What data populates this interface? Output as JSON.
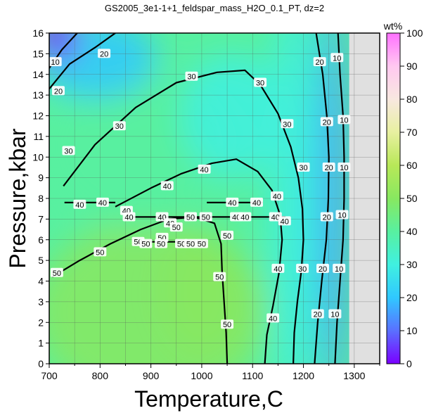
{
  "chart_data": {
    "type": "heatmap",
    "title": "GS2005_3e1-1+1_feldspar_mass_H2O_0.1_PT, dz=2",
    "xlabel": "Temperature,C",
    "ylabel": "Pressure,kbar",
    "xlim": [
      700,
      1350
    ],
    "ylim": [
      0,
      16
    ],
    "x_ticks": [
      "700",
      "800",
      "900",
      "1000",
      "1100",
      "1200",
      "1300"
    ],
    "y_ticks": [
      "0",
      "1",
      "2",
      "3",
      "4",
      "5",
      "6",
      "7",
      "8",
      "9",
      "10",
      "11",
      "12",
      "13",
      "14",
      "15",
      "16"
    ],
    "grid": true,
    "colorbar": {
      "label": "wt%",
      "range": [
        0,
        100
      ],
      "ticks": [
        "0",
        "10",
        "20",
        "30",
        "40",
        "50",
        "60",
        "70",
        "80",
        "90",
        "100"
      ],
      "colors": [
        {
          "value": 0,
          "color": "#7a00ff"
        },
        {
          "value": 10,
          "color": "#5a70ff"
        },
        {
          "value": 20,
          "color": "#30c8ff"
        },
        {
          "value": 30,
          "color": "#40f0e0"
        },
        {
          "value": 40,
          "color": "#58f0a0"
        },
        {
          "value": 50,
          "color": "#88e860"
        },
        {
          "value": 60,
          "color": "#b8e858"
        },
        {
          "value": 70,
          "color": "#e8f0a0"
        },
        {
          "value": 80,
          "color": "#f8e8e0"
        },
        {
          "value": 90,
          "color": "#ffc8f0"
        },
        {
          "value": 100,
          "color": "#ff70ff"
        }
      ]
    },
    "no_data_color": "#e0e0e0",
    "contour_lines": [
      {
        "value": 10,
        "label": "10",
        "points": [
          [
            1268,
            16
          ],
          [
            1272,
            14
          ],
          [
            1278,
            12
          ],
          [
            1280,
            10
          ],
          [
            1280,
            8
          ],
          [
            1278,
            6
          ],
          [
            1272,
            4
          ],
          [
            1266,
            2
          ],
          [
            1262,
            0
          ]
        ]
      },
      {
        "value": 20,
        "label": "20",
        "points": [
          [
            1225,
            16
          ],
          [
            1238,
            14
          ],
          [
            1246,
            12
          ],
          [
            1250,
            10
          ],
          [
            1249,
            8
          ],
          [
            1245,
            6
          ],
          [
            1236,
            4
          ],
          [
            1228,
            2
          ],
          [
            1222,
            0
          ]
        ]
      },
      {
        "value": 30,
        "label": "30",
        "points": [
          [
            728,
            8.6
          ],
          [
            790,
            10.6
          ],
          [
            870,
            12.4
          ],
          [
            950,
            13.6
          ],
          [
            1030,
            14.1
          ],
          [
            1085,
            14.2
          ],
          [
            1115,
            13.5
          ],
          [
            1150,
            12.1
          ],
          [
            1175,
            10.5
          ],
          [
            1190,
            9
          ],
          [
            1198,
            7.5
          ],
          [
            1200,
            6
          ],
          [
            1196,
            4.5
          ],
          [
            1188,
            3
          ],
          [
            1182,
            1.5
          ],
          [
            1180,
            0
          ]
        ]
      },
      {
        "value": 40,
        "label": "40",
        "points": [
          [
            830,
            7.6
          ],
          [
            900,
            8.5
          ],
          [
            960,
            9.2
          ],
          [
            1020,
            9.7
          ],
          [
            1068,
            9.9
          ],
          [
            1110,
            9.3
          ],
          [
            1138,
            8.4
          ],
          [
            1154,
            7.2
          ],
          [
            1158,
            6
          ],
          [
            1152,
            4.4
          ],
          [
            1140,
            2.8
          ],
          [
            1128,
            1.4
          ],
          [
            1124,
            0
          ]
        ]
      },
      {
        "value": 40,
        "label": "40",
        "points": [
          [
            730,
            7.8
          ],
          [
            830,
            7.8
          ]
        ]
      },
      {
        "value": 40,
        "label": "40",
        "points": [
          [
            860,
            7.1
          ],
          [
            1165,
            7.1
          ]
        ]
      },
      {
        "value": 40,
        "label": "40",
        "points": [
          [
            1010,
            7.8
          ],
          [
            1120,
            7.8
          ]
        ]
      },
      {
        "value": 50,
        "label": "50",
        "points": [
          [
            706,
            4.2
          ],
          [
            760,
            5
          ],
          [
            820,
            5.8
          ],
          [
            880,
            6.5
          ],
          [
            935,
            7
          ],
          [
            985,
            7.1
          ],
          [
            1025,
            6.8
          ],
          [
            1038,
            5.8
          ],
          [
            1040,
            4.5
          ],
          [
            1044,
            3
          ],
          [
            1048,
            1.5
          ],
          [
            1050,
            0
          ]
        ]
      },
      {
        "value": 50,
        "label": "50",
        "points": [
          [
            880,
            5.9
          ],
          [
            1010,
            5.9
          ]
        ]
      },
      {
        "value": 20,
        "label": "20",
        "points": [
          [
            700,
            13.3
          ],
          [
            740,
            14.5
          ],
          [
            790,
            15.3
          ],
          [
            830,
            16
          ]
        ]
      },
      {
        "value": 10,
        "label": "10",
        "points": [
          [
            700,
            14.3
          ],
          [
            725,
            15.2
          ],
          [
            755,
            16
          ]
        ]
      }
    ],
    "contour_labels": [
      {
        "text": "10",
        "x": 712,
        "y": 14.6
      },
      {
        "text": "20",
        "x": 718,
        "y": 13.2
      },
      {
        "text": "20",
        "x": 808,
        "y": 15.0
      },
      {
        "text": "30",
        "x": 738,
        "y": 10.3
      },
      {
        "text": "30",
        "x": 838,
        "y": 11.5
      },
      {
        "text": "30",
        "x": 980,
        "y": 13.9
      },
      {
        "text": "30",
        "x": 1115,
        "y": 13.6
      },
      {
        "text": "30",
        "x": 1168,
        "y": 11.6
      },
      {
        "text": "30",
        "x": 1200,
        "y": 9.5
      },
      {
        "text": "30",
        "x": 1198,
        "y": 4.6
      },
      {
        "text": "40",
        "x": 932,
        "y": 8.6
      },
      {
        "text": "40",
        "x": 1005,
        "y": 9.4
      },
      {
        "text": "40",
        "x": 1148,
        "y": 8.1
      },
      {
        "text": "40",
        "x": 1150,
        "y": 4.6
      },
      {
        "text": "40",
        "x": 1140,
        "y": 2.2
      },
      {
        "text": "40",
        "x": 760,
        "y": 7.7
      },
      {
        "text": "40",
        "x": 805,
        "y": 7.8
      },
      {
        "text": "40",
        "x": 852,
        "y": 7.4
      },
      {
        "text": "40",
        "x": 1060,
        "y": 7.8
      },
      {
        "text": "40",
        "x": 1108,
        "y": 7.8
      },
      {
        "text": "40",
        "x": 857,
        "y": 7.1
      },
      {
        "text": "40",
        "x": 922,
        "y": 7.1
      },
      {
        "text": "40",
        "x": 1068,
        "y": 7.1
      },
      {
        "text": "40",
        "x": 1085,
        "y": 7.1
      },
      {
        "text": "40",
        "x": 1145,
        "y": 7.1
      },
      {
        "text": "40",
        "x": 1163,
        "y": 6.9
      },
      {
        "text": "40",
        "x": 938,
        "y": 6.8
      },
      {
        "text": "50",
        "x": 715,
        "y": 4.4
      },
      {
        "text": "50",
        "x": 800,
        "y": 5.4
      },
      {
        "text": "50",
        "x": 978,
        "y": 7.1
      },
      {
        "text": "50",
        "x": 1008,
        "y": 7.1
      },
      {
        "text": "50",
        "x": 950,
        "y": 6.6
      },
      {
        "text": "50",
        "x": 922,
        "y": 6.1
      },
      {
        "text": "50",
        "x": 875,
        "y": 5.9
      },
      {
        "text": "50",
        "x": 890,
        "y": 5.8
      },
      {
        "text": "50",
        "x": 920,
        "y": 5.8
      },
      {
        "text": "50",
        "x": 960,
        "y": 5.8
      },
      {
        "text": "50",
        "x": 978,
        "y": 5.8
      },
      {
        "text": "50",
        "x": 1000,
        "y": 5.8
      },
      {
        "text": "50",
        "x": 1050,
        "y": 6.2
      },
      {
        "text": "50",
        "x": 1035,
        "y": 4.2
      },
      {
        "text": "50",
        "x": 1050,
        "y": 1.9
      },
      {
        "text": "10",
        "x": 1266,
        "y": 14.8
      },
      {
        "text": "10",
        "x": 1280,
        "y": 11.8
      },
      {
        "text": "10",
        "x": 1280,
        "y": 9.5
      },
      {
        "text": "10",
        "x": 1276,
        "y": 7.2
      },
      {
        "text": "10",
        "x": 1270,
        "y": 4.6
      },
      {
        "text": "10",
        "x": 1262,
        "y": 2.4
      },
      {
        "text": "20",
        "x": 1232,
        "y": 14.6
      },
      {
        "text": "20",
        "x": 1246,
        "y": 11.7
      },
      {
        "text": "20",
        "x": 1250,
        "y": 9.5
      },
      {
        "text": "20",
        "x": 1246,
        "y": 7.1
      },
      {
        "text": "20",
        "x": 1238,
        "y": 4.6
      },
      {
        "text": "20",
        "x": 1228,
        "y": 2.4
      }
    ]
  }
}
